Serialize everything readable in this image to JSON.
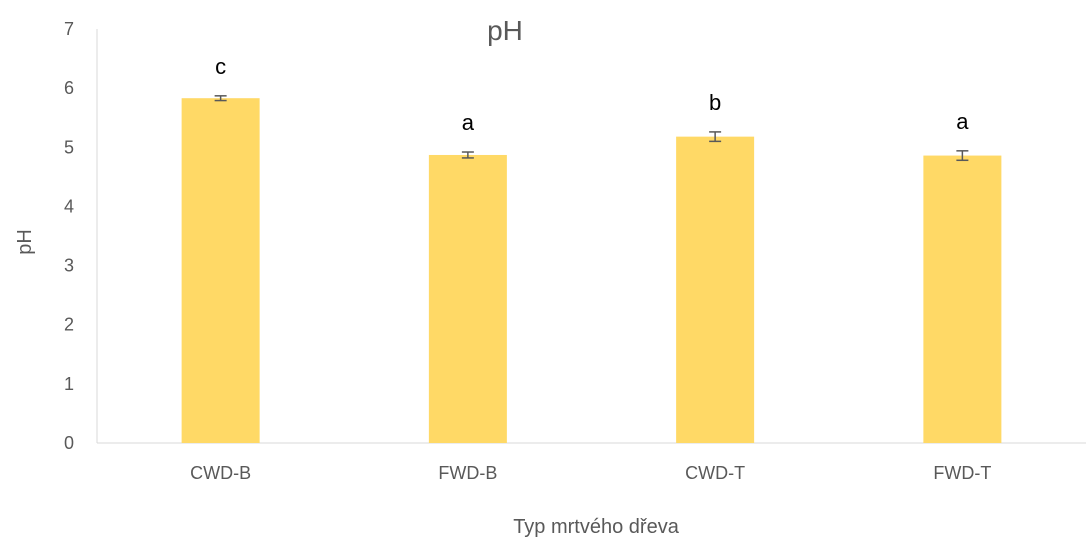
{
  "chart_data": {
    "type": "bar",
    "title": "pH",
    "xlabel": "Typ mrtvého dřeva",
    "ylabel": "pH",
    "categories": [
      "CWD-B",
      "FWD-B",
      "CWD-T",
      "FWD-T"
    ],
    "values": [
      5.83,
      4.87,
      5.18,
      4.86
    ],
    "errors": [
      0.04,
      0.05,
      0.08,
      0.08
    ],
    "significance_labels": [
      "c",
      "a",
      "b",
      "a"
    ],
    "ylim": [
      0,
      7
    ],
    "yticks": [
      "0",
      "1",
      "2",
      "3",
      "4",
      "5",
      "6",
      "7"
    ],
    "grid": false,
    "legend": "none",
    "colors": {
      "bar": "#FFD966",
      "error_bar": "#595959",
      "axis": "#D9D9D9"
    }
  }
}
